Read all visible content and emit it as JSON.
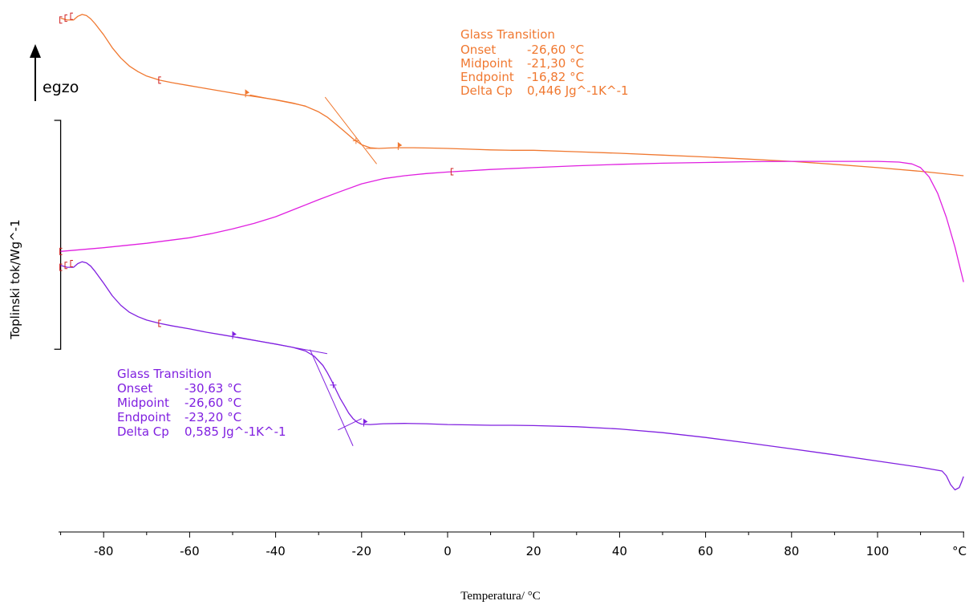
{
  "chart_data": {
    "type": "line",
    "xlabel": "Temperatura/ °C",
    "ylabel": "Toplinski tok/Wg^-1",
    "x_unit": "°C",
    "x_ticks": [
      -80,
      -60,
      -40,
      -20,
      0,
      20,
      40,
      60,
      80,
      100
    ],
    "xlim": [
      -90,
      120
    ],
    "exo_label": "egzo",
    "colors": {
      "orange": "#f07830",
      "magenta": "#e020e0",
      "purple": "#8020e0",
      "marker": "#d02020"
    },
    "series": [
      {
        "x": [
          -90,
          -88.5,
          -87,
          -86,
          -85,
          -84,
          -83,
          -82,
          -80,
          -78,
          -76,
          -74,
          -72,
          -70,
          -67,
          -64,
          -60,
          -56,
          -52,
          -48,
          -44,
          -40,
          -36,
          -33,
          -30,
          -28,
          -26,
          -24,
          -22,
          -20,
          -18,
          -16,
          -14,
          -12,
          -10,
          -8,
          -4,
          0,
          5,
          10,
          15,
          20,
          30,
          40,
          50,
          60,
          70,
          80,
          90,
          100,
          110,
          120
        ],
        "y": [
          14.9,
          14.85,
          14.85,
          14.95,
          15.0,
          14.97,
          14.88,
          14.75,
          14.45,
          14.1,
          13.82,
          13.6,
          13.45,
          13.33,
          13.22,
          13.15,
          13.07,
          12.99,
          12.91,
          12.83,
          12.76,
          12.69,
          12.6,
          12.51,
          12.36,
          12.22,
          12.03,
          11.83,
          11.63,
          11.47,
          11.39,
          11.37,
          11.38,
          11.39,
          11.39,
          11.39,
          11.38,
          11.37,
          11.35,
          11.33,
          11.32,
          11.32,
          11.28,
          11.24,
          11.19,
          11.14,
          11.08,
          11.02,
          10.94,
          10.85,
          10.75,
          10.63
        ]
      },
      {
        "x": [
          -90,
          -80,
          -70,
          -60,
          -55,
          -50,
          -45,
          -40,
          -35,
          -30,
          -25,
          -20,
          -15,
          -10,
          -5,
          0,
          10,
          20,
          30,
          40,
          50,
          60,
          70,
          80,
          90,
          100,
          105,
          108,
          110,
          112,
          114,
          116,
          118,
          120
        ],
        "y": [
          8.58,
          8.68,
          8.8,
          8.95,
          9.06,
          9.19,
          9.34,
          9.52,
          9.75,
          9.98,
          10.2,
          10.41,
          10.55,
          10.63,
          10.69,
          10.73,
          10.8,
          10.85,
          10.9,
          10.94,
          10.97,
          10.99,
          11.01,
          11.02,
          11.02,
          11.02,
          11.0,
          10.95,
          10.85,
          10.6,
          10.15,
          9.5,
          8.7,
          7.75
        ]
      },
      {
        "x": [
          -90,
          -88.5,
          -87,
          -86,
          -85,
          -84,
          -83,
          -82,
          -80,
          -78,
          -76,
          -74,
          -72,
          -70,
          -67,
          -64,
          -60,
          -56,
          -52,
          -48,
          -44,
          -40,
          -36,
          -33,
          -31,
          -29,
          -28,
          -27,
          -26,
          -25,
          -24,
          -23,
          -22,
          -21,
          -20,
          -18,
          -15,
          -10,
          -5,
          0,
          5,
          10,
          15,
          20,
          30,
          40,
          50,
          60,
          70,
          80,
          90,
          100,
          110,
          115,
          116,
          117,
          118,
          119,
          119.5,
          120
        ],
        "y": [
          8.2,
          8.15,
          8.15,
          8.25,
          8.3,
          8.27,
          8.18,
          8.04,
          7.72,
          7.38,
          7.12,
          6.93,
          6.81,
          6.72,
          6.63,
          6.56,
          6.48,
          6.39,
          6.31,
          6.23,
          6.15,
          6.07,
          5.98,
          5.88,
          5.74,
          5.49,
          5.3,
          5.08,
          4.84,
          4.6,
          4.4,
          4.2,
          4.05,
          3.95,
          3.9,
          3.89,
          3.91,
          3.92,
          3.91,
          3.89,
          3.88,
          3.87,
          3.87,
          3.86,
          3.83,
          3.77,
          3.67,
          3.54,
          3.39,
          3.23,
          3.07,
          2.9,
          2.73,
          2.63,
          2.5,
          2.26,
          2.12,
          2.18,
          2.32,
          2.48
        ]
      }
    ],
    "markers": [
      {
        "series": 0,
        "type": "bracket",
        "x": -90.0,
        "y": 14.85
      },
      {
        "series": 0,
        "type": "bracket",
        "x": -88.8,
        "y": 14.9
      },
      {
        "series": 0,
        "type": "bracket",
        "x": -87.5,
        "y": 14.95
      },
      {
        "series": 0,
        "type": "bracket",
        "x": -67.0,
        "y": 13.22
      },
      {
        "series": 0,
        "type": "flag",
        "x": -47.0,
        "y": 12.82
      },
      {
        "series": 0,
        "type": "plus",
        "x": -21.3,
        "y": 11.58
      },
      {
        "series": 0,
        "type": "flag",
        "x": -11.5,
        "y": 11.39
      },
      {
        "series": 1,
        "type": "bracket",
        "x": -90.0,
        "y": 8.58
      },
      {
        "series": 1,
        "type": "bracket",
        "x": 1.0,
        "y": 10.74
      },
      {
        "series": 2,
        "type": "bracket",
        "x": -90.0,
        "y": 8.15
      },
      {
        "series": 2,
        "type": "bracket",
        "x": -88.8,
        "y": 8.2
      },
      {
        "series": 2,
        "type": "bracket",
        "x": -87.5,
        "y": 8.25
      },
      {
        "series": 2,
        "type": "bracket",
        "x": -67.0,
        "y": 6.63
      },
      {
        "series": 2,
        "type": "flag",
        "x": -50.0,
        "y": 6.27
      },
      {
        "series": 2,
        "type": "plus",
        "x": -26.6,
        "y": 4.96
      },
      {
        "series": 2,
        "type": "flag",
        "x": -19.5,
        "y": 3.9
      }
    ],
    "tangents": [
      {
        "series": 0,
        "x": [
          -46.0,
          -33.0
        ],
        "y": [
          12.82,
          12.52
        ]
      },
      {
        "series": 0,
        "x": [
          -28.5,
          -16.5
        ],
        "y": [
          12.76,
          10.95
        ]
      },
      {
        "series": 0,
        "x": [
          -19.0,
          -16.0
        ],
        "y": [
          11.37,
          11.37
        ]
      },
      {
        "series": 2,
        "x": [
          -49.0,
          -28.0
        ],
        "y": [
          6.26,
          5.81
        ]
      },
      {
        "series": 2,
        "x": [
          -32.0,
          -22.0
        ],
        "y": [
          5.92,
          3.31
        ]
      },
      {
        "series": 2,
        "x": [
          -25.5,
          -20.0
        ],
        "y": [
          3.74,
          4.05
        ]
      }
    ],
    "scale_bar": {
      "x": -90.0,
      "y1": 12.13,
      "y2": 5.93
    },
    "annotations": [
      {
        "color": "orange",
        "title": "Glass Transition",
        "rows": [
          [
            "Onset",
            "-26,60 °C"
          ],
          [
            "Midpoint",
            "-21,30 °C"
          ],
          [
            "Endpoint",
            "-16,82 °C"
          ],
          [
            "Delta Cp",
            "0,446 Jg^-1K^-1"
          ]
        ]
      },
      {
        "color": "purple",
        "title": "Glass Transition",
        "rows": [
          [
            "Onset",
            "-30,63 °C"
          ],
          [
            "Midpoint",
            "-26,60 °C"
          ],
          [
            "Endpoint",
            "-23,20 °C"
          ],
          [
            "Delta Cp",
            "0,585 Jg^-1K^-1"
          ]
        ]
      }
    ]
  }
}
